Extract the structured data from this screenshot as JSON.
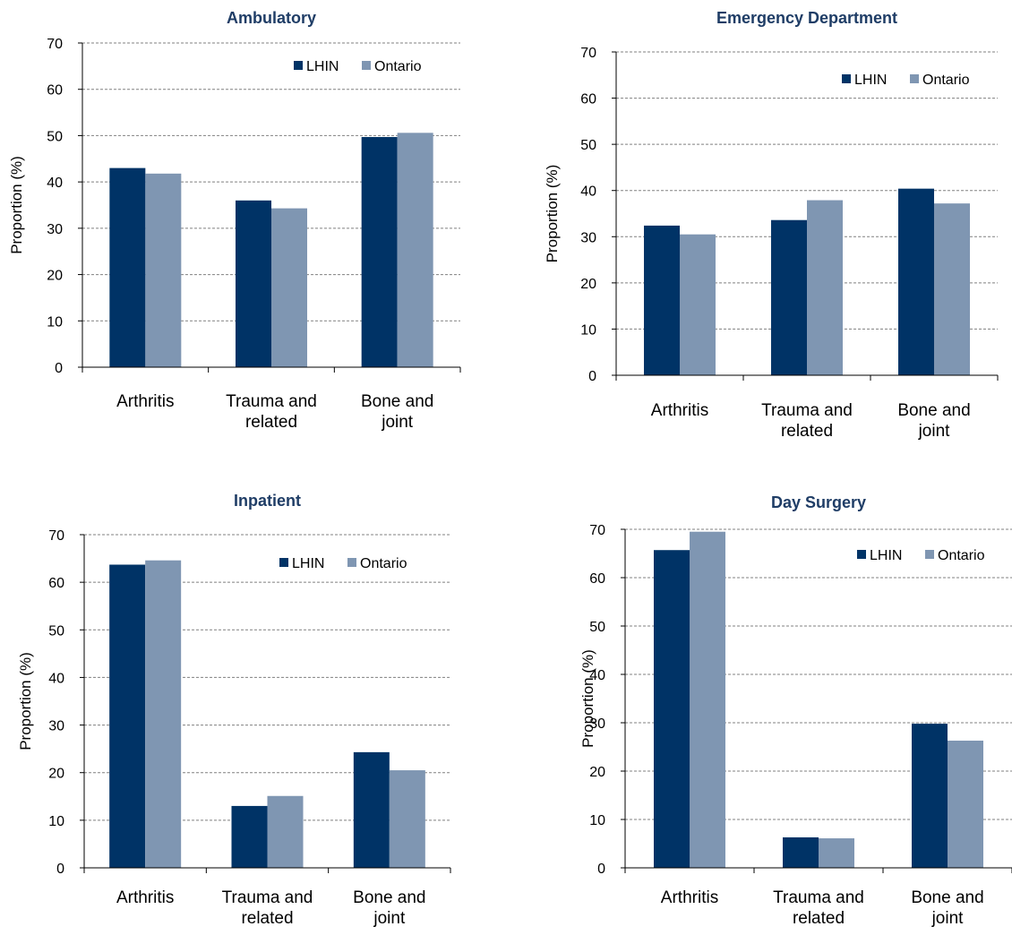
{
  "colors": {
    "LHIN": "#003366",
    "Ontario": "#7f96b2",
    "grid": "#808080",
    "title": "#1f3d66"
  },
  "chart_data": [
    {
      "type": "bar",
      "title": "Ambulatory",
      "ylabel": "Proportion (%)",
      "ylim": [
        0,
        70
      ],
      "yticks": [
        "0",
        "10",
        "20",
        "30",
        "40",
        "50",
        "60",
        "70"
      ],
      "categories": [
        [
          "Arthritis"
        ],
        [
          "Trauma and",
          "related"
        ],
        [
          "Bone and",
          "joint"
        ]
      ],
      "series": [
        {
          "name": "LHIN",
          "values": [
            43,
            36,
            49.7
          ]
        },
        {
          "name": "Ontario",
          "values": [
            41.8,
            34.3,
            50.6
          ]
        }
      ],
      "grid": true,
      "legend": "top-right"
    },
    {
      "type": "bar",
      "title": "Emergency Department",
      "ylabel": "Proportion (%)",
      "ylim": [
        0,
        70
      ],
      "yticks": [
        "0",
        "10",
        "20",
        "30",
        "40",
        "50",
        "60",
        "70"
      ],
      "categories": [
        [
          "Arthritis"
        ],
        [
          "Trauma and",
          "related"
        ],
        [
          "Bone and",
          "joint"
        ]
      ],
      "series": [
        {
          "name": "LHIN",
          "values": [
            32.4,
            33.6,
            40.4
          ]
        },
        {
          "name": "Ontario",
          "values": [
            30.5,
            37.9,
            37.2
          ]
        }
      ],
      "grid": true,
      "legend": "top-right"
    },
    {
      "type": "bar",
      "title": "Inpatient",
      "ylabel": "Proportion (%)",
      "ylim": [
        0,
        70
      ],
      "yticks": [
        "0",
        "10",
        "20",
        "30",
        "40",
        "50",
        "60",
        "70"
      ],
      "categories": [
        [
          "Arthritis"
        ],
        [
          "Trauma and",
          "related"
        ],
        [
          "Bone and",
          "joint"
        ]
      ],
      "series": [
        {
          "name": "LHIN",
          "values": [
            63.7,
            13,
            24.3
          ]
        },
        {
          "name": "Ontario",
          "values": [
            64.6,
            15.1,
            20.5
          ]
        }
      ],
      "grid": true,
      "legend": "top-right"
    },
    {
      "type": "bar",
      "title": "Day Surgery",
      "ylabel": "Proportion (%)",
      "ylim": [
        0,
        70
      ],
      "yticks": [
        "0",
        "10",
        "20",
        "30",
        "40",
        "50",
        "60",
        "70"
      ],
      "categories": [
        [
          "Arthritis"
        ],
        [
          "Trauma and",
          "related"
        ],
        [
          "Bone and",
          "joint"
        ]
      ],
      "series": [
        {
          "name": "LHIN",
          "values": [
            65.7,
            6.3,
            29.8
          ]
        },
        {
          "name": "Ontario",
          "values": [
            69.5,
            6.1,
            26.3
          ]
        }
      ],
      "grid": true,
      "legend": "top-right"
    }
  ]
}
